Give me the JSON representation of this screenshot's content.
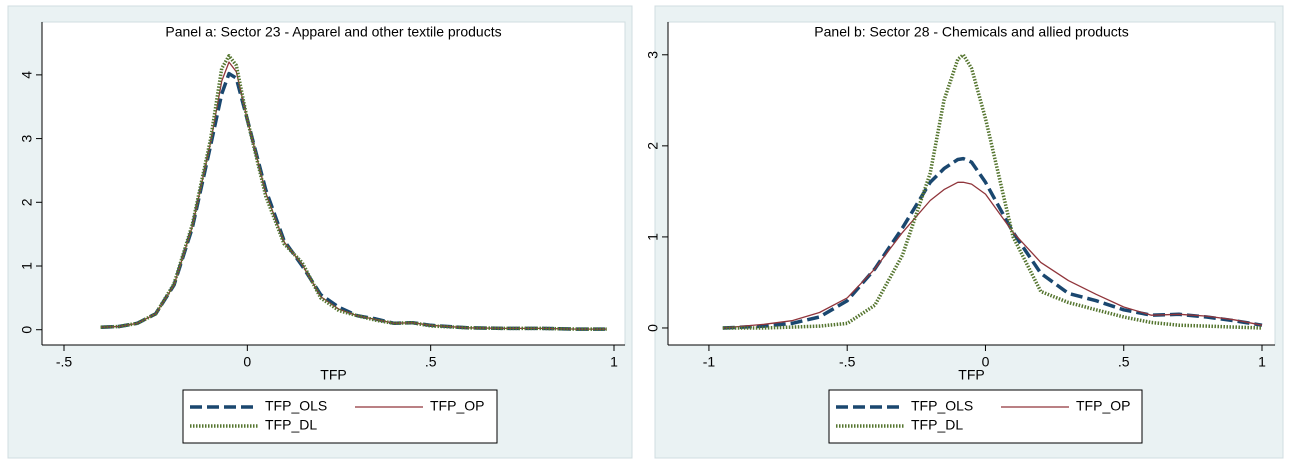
{
  "chart_data": [
    {
      "type": "line",
      "title": "Panel a: Sector 23 - Apparel and other textile products",
      "x_label": "TFP",
      "xlim": [
        -0.56,
        1.03
      ],
      "ylim": [
        -0.24,
        4.83
      ],
      "xticks": [
        {
          "value": -0.5,
          "label": "-.5"
        },
        0,
        {
          "value": 0.5,
          "label": ".5"
        },
        1
      ],
      "yticks": [
        0,
        1,
        2,
        3,
        4
      ],
      "x": [
        -0.4,
        -0.35,
        -0.3,
        -0.25,
        -0.2,
        -0.15,
        -0.1,
        -0.07,
        -0.05,
        -0.03,
        0,
        0.05,
        0.1,
        0.15,
        0.2,
        0.25,
        0.3,
        0.35,
        0.4,
        0.45,
        0.5,
        0.6,
        0.7,
        0.8,
        0.9,
        0.98
      ],
      "series": [
        {
          "name": "TFP_OLS",
          "color": "#1a476f",
          "values": [
            0.04,
            0.05,
            0.1,
            0.25,
            0.7,
            1.6,
            2.9,
            3.7,
            4.02,
            3.95,
            3.3,
            2.2,
            1.4,
            1.0,
            0.55,
            0.35,
            0.22,
            0.17,
            0.1,
            0.11,
            0.07,
            0.03,
            0.02,
            0.02,
            0.01,
            0.01
          ]
        },
        {
          "name": "TFP_OP",
          "color": "#90353b",
          "values": [
            0.04,
            0.05,
            0.1,
            0.25,
            0.7,
            1.62,
            2.95,
            3.9,
            4.2,
            4.05,
            3.3,
            2.15,
            1.38,
            1.02,
            0.52,
            0.32,
            0.22,
            0.16,
            0.1,
            0.11,
            0.07,
            0.03,
            0.02,
            0.02,
            0.01,
            0.01
          ]
        },
        {
          "name": "TFP_DL",
          "color": "#55752f",
          "values": [
            0.04,
            0.05,
            0.1,
            0.25,
            0.72,
            1.65,
            3.0,
            4.1,
            4.3,
            4.15,
            3.3,
            2.1,
            1.35,
            1.05,
            0.5,
            0.3,
            0.22,
            0.15,
            0.1,
            0.11,
            0.06,
            0.03,
            0.02,
            0.02,
            0.01,
            0.01
          ]
        }
      ]
    },
    {
      "type": "line",
      "title": "Panel b: Sector 28 - Chemicals and allied products",
      "x_label": "TFP",
      "xlim": [
        -1.148,
        1.047
      ],
      "ylim": [
        -0.187,
        3.36
      ],
      "xticks": [
        -1,
        {
          "value": -0.5,
          "label": "-.5"
        },
        0,
        {
          "value": 0.5,
          "label": ".5"
        },
        1
      ],
      "yticks": [
        0,
        1,
        2,
        3
      ],
      "x": [
        -0.95,
        -0.8,
        -0.7,
        -0.6,
        -0.5,
        -0.4,
        -0.3,
        -0.2,
        -0.15,
        -0.1,
        -0.08,
        -0.05,
        0,
        0.1,
        0.2,
        0.3,
        0.4,
        0.5,
        0.6,
        0.7,
        0.8,
        0.9,
        1
      ],
      "series": [
        {
          "name": "TFP_OLS",
          "color": "#1a476f",
          "values": [
            0.0,
            0.02,
            0.05,
            0.12,
            0.3,
            0.65,
            1.1,
            1.6,
            1.75,
            1.85,
            1.86,
            1.82,
            1.6,
            1.05,
            0.6,
            0.38,
            0.3,
            0.2,
            0.14,
            0.15,
            0.12,
            0.08,
            0.03
          ]
        },
        {
          "name": "TFP_OP",
          "color": "#90353b",
          "values": [
            0.0,
            0.04,
            0.08,
            0.17,
            0.33,
            0.65,
            1.05,
            1.4,
            1.52,
            1.6,
            1.6,
            1.58,
            1.47,
            1.05,
            0.72,
            0.52,
            0.37,
            0.23,
            0.14,
            0.15,
            0.13,
            0.09,
            0.03
          ]
        },
        {
          "name": "TFP_DL",
          "color": "#55752f",
          "values": [
            0.0,
            0.0,
            0.01,
            0.02,
            0.05,
            0.25,
            0.8,
            1.7,
            2.5,
            2.95,
            3.0,
            2.85,
            2.3,
            1.0,
            0.4,
            0.28,
            0.2,
            0.12,
            0.06,
            0.03,
            0.02,
            0.01,
            0.0
          ]
        }
      ]
    }
  ]
}
